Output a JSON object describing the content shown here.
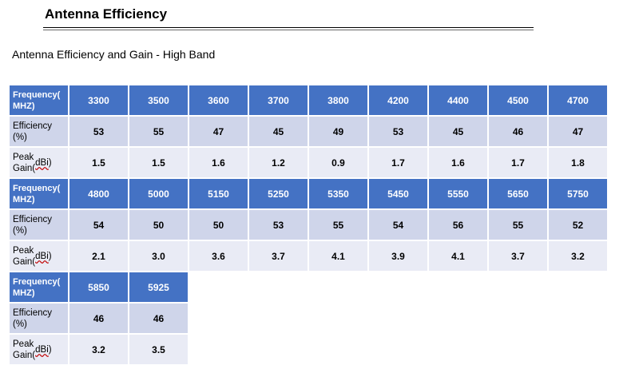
{
  "heading": "Antenna Efficiency",
  "subtitle": "Antenna Efficiency and Gain  - High Band",
  "table": {
    "row_labels": {
      "frequency": "Frequency(\nMHZ)",
      "efficiency": "Efficiency\n(%)",
      "gain_prefix": "Peak\nGain(",
      "gain_unit": "dBi",
      "gain_suffix": ")"
    },
    "blocks": [
      {
        "frequency": [
          "3300",
          "3500",
          "3600",
          "3700",
          "3800",
          "4200",
          "4400",
          "4500",
          "4700"
        ],
        "efficiency": [
          "53",
          "55",
          "47",
          "45",
          "49",
          "53",
          "45",
          "46",
          "47"
        ],
        "gain": [
          "1.5",
          "1.5",
          "1.6",
          "1.2",
          "0.9",
          "1.7",
          "1.6",
          "1.7",
          "1.8"
        ]
      },
      {
        "frequency": [
          "4800",
          "5000",
          "5150",
          "5250",
          "5350",
          "5450",
          "5550",
          "5650",
          "5750"
        ],
        "efficiency": [
          "54",
          "50",
          "50",
          "53",
          "55",
          "54",
          "56",
          "55",
          "52"
        ],
        "gain": [
          "2.1",
          "3.0",
          "3.6",
          "3.7",
          "4.1",
          "3.9",
          "4.1",
          "3.7",
          "3.2"
        ]
      },
      {
        "frequency": [
          "5850",
          "5925"
        ],
        "efficiency": [
          "46",
          "46"
        ],
        "gain": [
          "3.2",
          "3.5"
        ]
      }
    ]
  },
  "colors": {
    "header_fill": "#4472c4",
    "efficiency_fill": "#cfd5ea",
    "gain_fill": "#e9ebf5"
  }
}
